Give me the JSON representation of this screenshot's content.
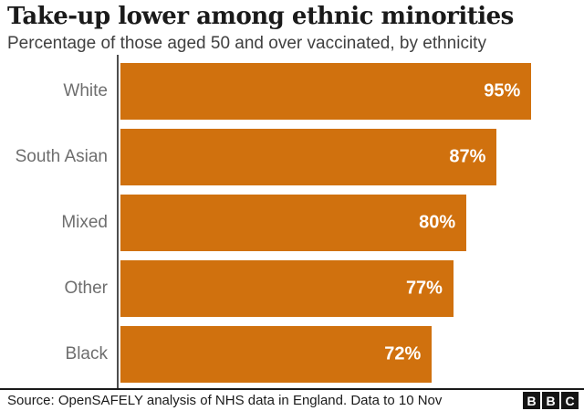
{
  "header": {
    "title": "Take-up lower among ethnic minorities",
    "subtitle": "Percentage of those aged 50 and over vaccinated, by ethnicity"
  },
  "chart_data": {
    "type": "bar",
    "orientation": "horizontal",
    "title": "Take-up lower among ethnic minorities",
    "subtitle": "Percentage of those aged 50 and over vaccinated, by ethnicity",
    "categories": [
      "White",
      "South Asian",
      "Mixed",
      "Other",
      "Black"
    ],
    "values": [
      95,
      87,
      80,
      77,
      72
    ],
    "value_labels": [
      "95%",
      "87%",
      "80%",
      "77%",
      "72%"
    ],
    "xlabel": "",
    "ylabel": "",
    "xlim": [
      0,
      100
    ],
    "grid": false,
    "legend": false,
    "bar_color": "#d0710e",
    "category_label_color": "#6e6e6e",
    "value_label_color": "#ffffff",
    "axis_line_color": "#4d4d4d"
  },
  "footer": {
    "source": "Source: OpenSAFELY analysis of NHS data in England. Data to 10 Nov",
    "logo_letters": [
      "B",
      "B",
      "C"
    ]
  }
}
